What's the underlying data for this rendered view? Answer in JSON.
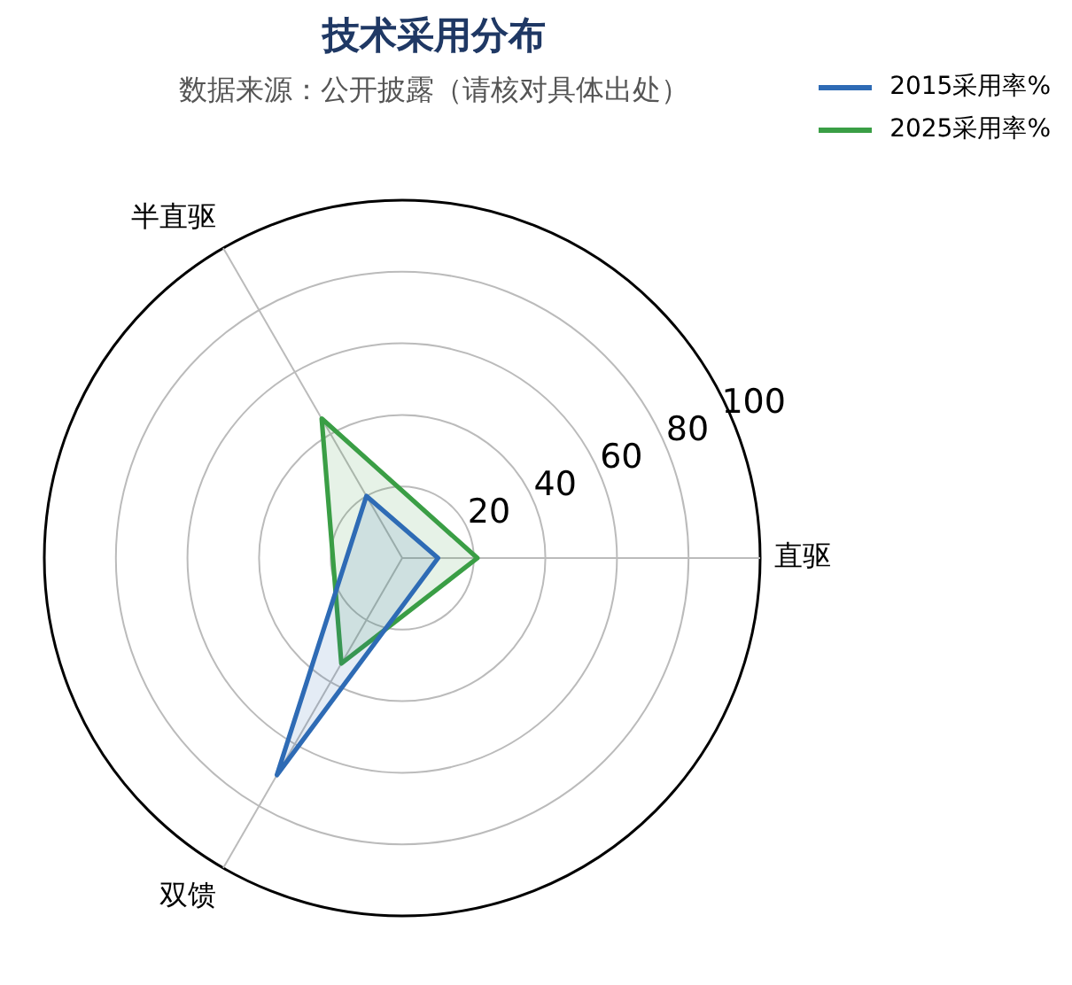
{
  "chart_data": {
    "type": "radar",
    "title": "技术采用分布",
    "subtitle": "数据来源：公开披露（请核对具体出处）",
    "categories": [
      "直驱",
      "双馈",
      "半直驱"
    ],
    "series": [
      {
        "name": "2015采用率%",
        "color": "#2e6bb5",
        "values": [
          10,
          70,
          20
        ]
      },
      {
        "name": "2025采用率%",
        "color": "#3a9e45",
        "values": [
          21,
          34,
          45
        ]
      }
    ],
    "ylim": [
      0,
      100
    ],
    "yticks": [
      20,
      40,
      60,
      80,
      100
    ],
    "grid": true,
    "legend": "top right",
    "marker": "none"
  }
}
